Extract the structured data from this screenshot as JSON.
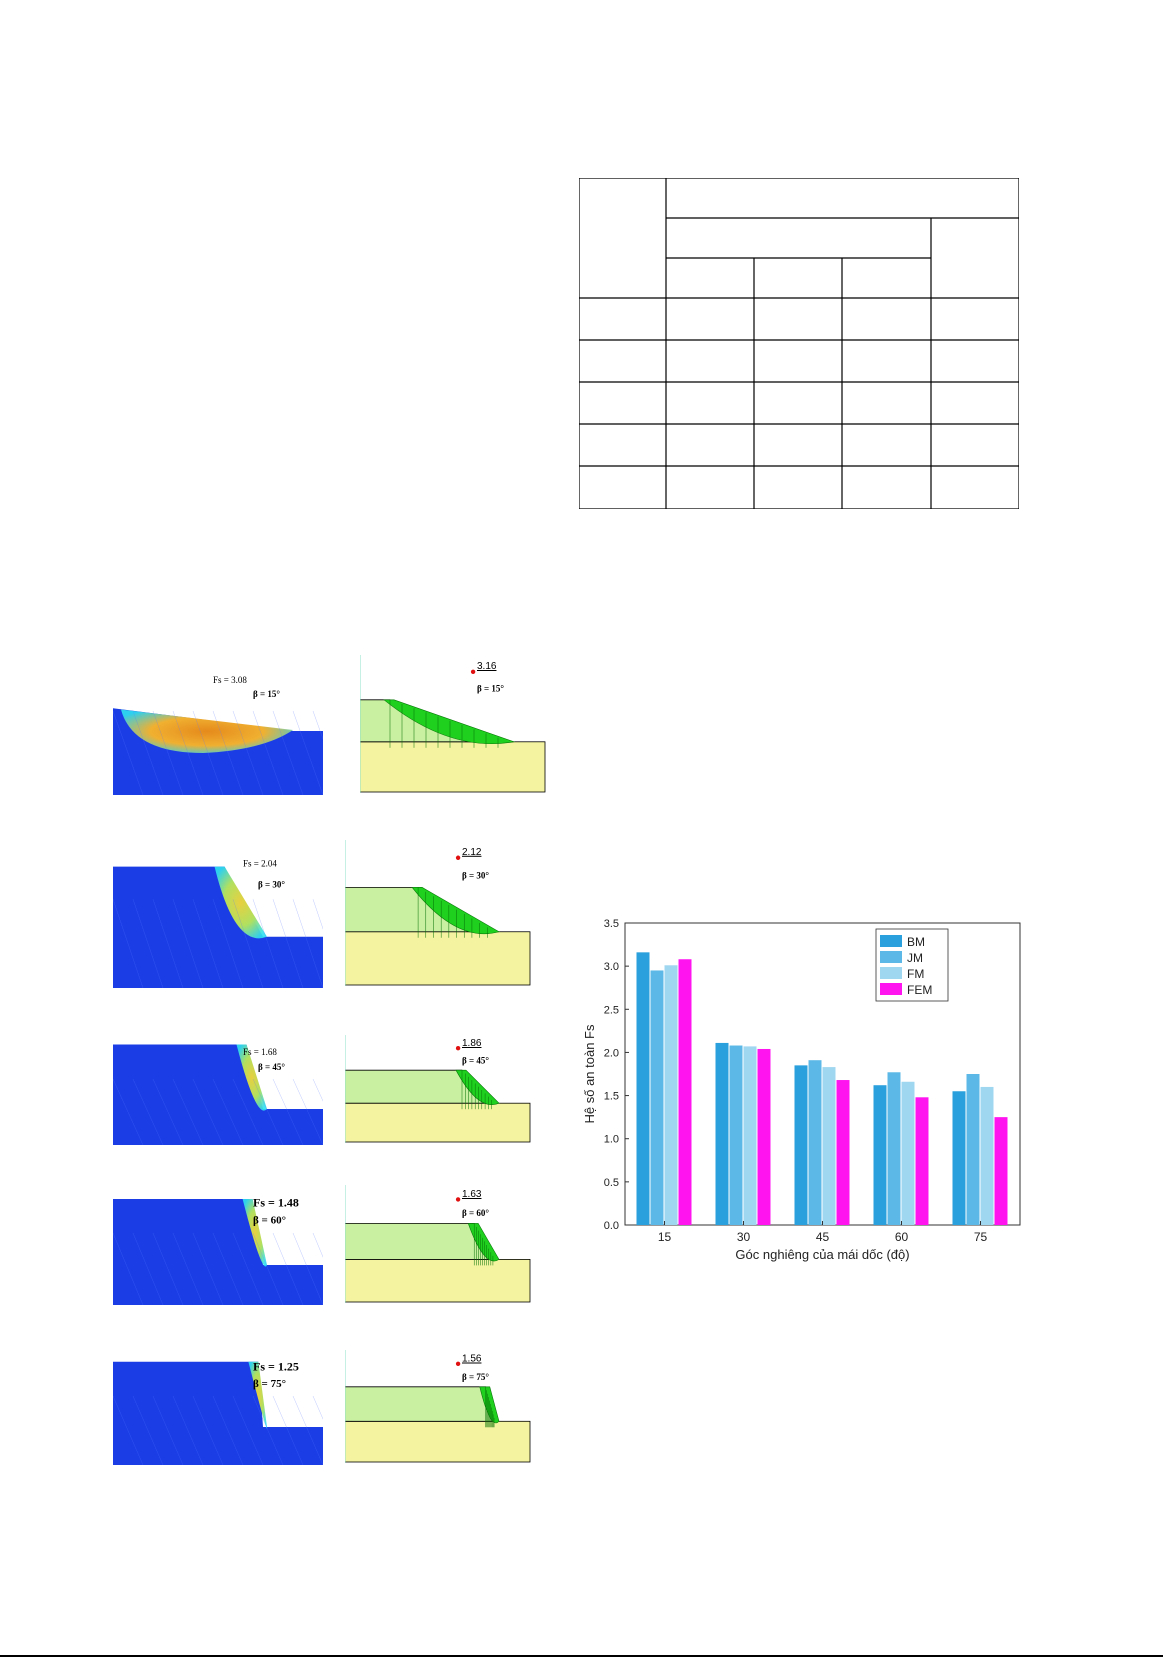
{
  "figure_left": {
    "panels": [
      {
        "fem_label": "Fs = 3.08",
        "fem_beta": "β = 15°",
        "lem_value": "3.16",
        "lem_beta": "β = 15°"
      },
      {
        "fem_label": "Fs = 2.04",
        "fem_beta": "β = 30°",
        "lem_value": "2.12",
        "lem_beta": "β = 30°"
      },
      {
        "fem_label": "Fs = 1.68",
        "fem_beta": "β = 45°",
        "lem_value": "1.86",
        "lem_beta": "β = 45°"
      },
      {
        "fem_label": "Fs = 1.48",
        "fem_beta": "β = 60°",
        "lem_value": "1.63",
        "lem_beta": "β = 60°"
      },
      {
        "fem_label": "Fs = 1.25",
        "fem_beta": "β = 75°",
        "lem_value": "1.56",
        "lem_beta": "β = 75°"
      }
    ]
  },
  "colors": {
    "fem_blue": "#1a3de6",
    "fem_orange": "#e58a1c",
    "lem_green_light": "#c8f0a0",
    "lem_yellow": "#f4f4a0",
    "lem_slice_green": "#1fd01f",
    "bm": "#2aa0dc",
    "jm": "#5cb8e6",
    "fm": "#9fd6f0",
    "fem": "#ff14f0"
  },
  "chart_data": {
    "type": "bar",
    "categories": [
      "15",
      "30",
      "45",
      "60",
      "75"
    ],
    "series": [
      {
        "name": "BM",
        "values": [
          3.16,
          2.11,
          1.85,
          1.62,
          1.55
        ]
      },
      {
        "name": "JM",
        "values": [
          2.95,
          2.08,
          1.91,
          1.77,
          1.75
        ]
      },
      {
        "name": "FM",
        "values": [
          3.01,
          2.07,
          1.83,
          1.66,
          1.6
        ]
      },
      {
        "name": "FEM",
        "values": [
          3.08,
          2.04,
          1.68,
          1.48,
          1.25
        ]
      }
    ],
    "xlabel": "Góc nghiêng của mái dốc (độ)",
    "ylabel": "Hệ số an toàn Fs",
    "ylim": [
      0,
      3.5
    ],
    "yticks": [
      "0.0",
      "0.5",
      "1.0",
      "1.5",
      "2.0",
      "2.5",
      "3.0",
      "3.5"
    ],
    "legend_position": "top-right"
  }
}
